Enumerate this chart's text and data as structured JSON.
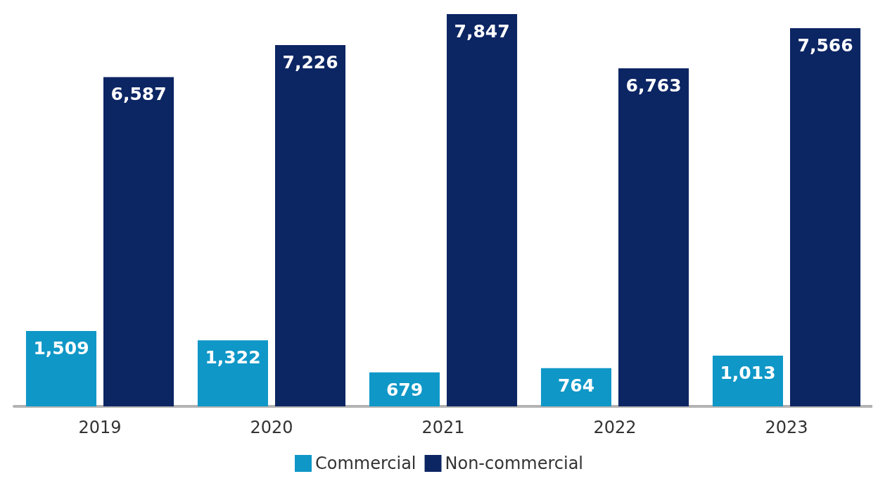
{
  "chart_data": {
    "type": "bar",
    "categories": [
      "2019",
      "2020",
      "2021",
      "2022",
      "2023"
    ],
    "series": [
      {
        "name": "Commercial",
        "color": "#0f97c7",
        "values": [
          1509,
          1322,
          679,
          764,
          1013
        ],
        "value_labels": [
          "1,509",
          "1,322",
          "679",
          "764",
          "1,013"
        ]
      },
      {
        "name": "Non-commercial",
        "color": "#0c2563",
        "values": [
          6587,
          7226,
          7847,
          6763,
          7566
        ],
        "value_labels": [
          "6,587",
          "7,226",
          "7,847",
          "6,763",
          "7,566"
        ]
      }
    ],
    "legend": "bottom"
  }
}
